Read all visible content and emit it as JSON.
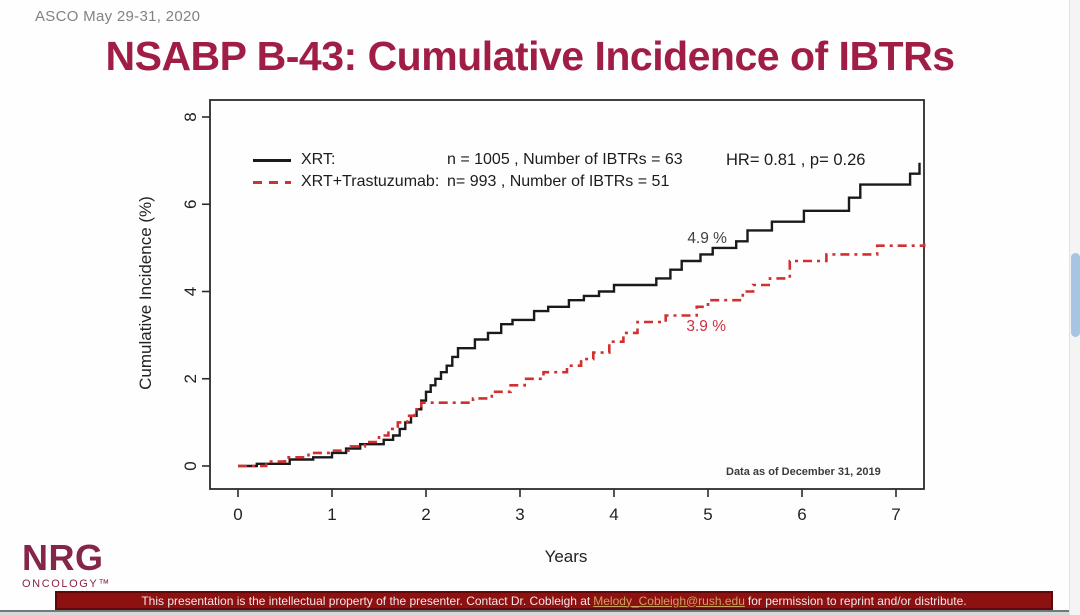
{
  "header": {
    "conference": "ASCO May 29-31, 2020",
    "title": "NSABP B-43: Cumulative Incidence of IBTRs"
  },
  "colors": {
    "title": "#a01d45",
    "xrt_line": "#1a1a1a",
    "trastuzumab_line": "#d13030",
    "banner_background": "#8e1111",
    "banner_link": "#c9a35e",
    "nrg_logo": "#84254a",
    "scrollbar_thumb": "#a8c4e4"
  },
  "legend": {
    "rows": [
      {
        "label": "XRT:",
        "stats": "n = 1005 , Number of IBTRs = 63",
        "color": "#1a1a1a",
        "style": "solid"
      },
      {
        "label": "XRT+Trastuzumab:",
        "stats": "n= 993 , Number of IBTRs = 51",
        "color": "#d13030",
        "style": "dash-dot"
      }
    ],
    "stats_text": "HR= 0.81 ,  p= 0.26"
  },
  "chart_data": {
    "type": "line",
    "subtype": "step-cumulative-incidence",
    "title": "",
    "xlabel": "Years",
    "ylabel": "Cumulative Incidence (%)",
    "xlim": [
      0,
      7.35
    ],
    "ylim": [
      0,
      8
    ],
    "xticks": [
      0,
      1,
      2,
      3,
      4,
      5,
      6,
      7
    ],
    "yticks": [
      0,
      2,
      4,
      6,
      8
    ],
    "grid": false,
    "legend_position": "top-left-inside",
    "stats": {
      "hr": 0.81,
      "p": 0.26
    },
    "series": [
      {
        "name": "XRT",
        "n": 1005,
        "events": 63,
        "color": "#1a1a1a",
        "style": "solid",
        "final_label": "4.9 %",
        "points": [
          [
            0,
            0
          ],
          [
            0.2,
            0.05
          ],
          [
            0.55,
            0.15
          ],
          [
            0.8,
            0.2
          ],
          [
            1.0,
            0.3
          ],
          [
            1.15,
            0.4
          ],
          [
            1.3,
            0.5
          ],
          [
            1.55,
            0.6
          ],
          [
            1.65,
            0.7
          ],
          [
            1.72,
            0.85
          ],
          [
            1.78,
            1.0
          ],
          [
            1.84,
            1.15
          ],
          [
            1.9,
            1.3
          ],
          [
            1.95,
            1.5
          ],
          [
            2.0,
            1.7
          ],
          [
            2.05,
            1.85
          ],
          [
            2.1,
            2.0
          ],
          [
            2.16,
            2.15
          ],
          [
            2.22,
            2.3
          ],
          [
            2.28,
            2.5
          ],
          [
            2.34,
            2.7
          ],
          [
            2.52,
            2.9
          ],
          [
            2.66,
            3.05
          ],
          [
            2.8,
            3.25
          ],
          [
            2.92,
            3.35
          ],
          [
            3.15,
            3.55
          ],
          [
            3.3,
            3.65
          ],
          [
            3.52,
            3.8
          ],
          [
            3.68,
            3.9
          ],
          [
            3.84,
            4.0
          ],
          [
            4.0,
            4.15
          ],
          [
            4.45,
            4.3
          ],
          [
            4.6,
            4.5
          ],
          [
            4.72,
            4.7
          ],
          [
            4.92,
            4.85
          ],
          [
            5.05,
            5.0
          ],
          [
            5.3,
            5.15
          ],
          [
            5.42,
            5.4
          ],
          [
            5.68,
            5.6
          ],
          [
            6.02,
            5.85
          ],
          [
            6.5,
            6.15
          ],
          [
            6.62,
            6.45
          ],
          [
            7.15,
            6.7
          ],
          [
            7.25,
            6.95
          ]
        ]
      },
      {
        "name": "XRT+Trastuzumab",
        "n": 993,
        "events": 51,
        "color": "#d13030",
        "style": "dash-dot",
        "final_label": "3.9 %",
        "points": [
          [
            0,
            0
          ],
          [
            0.3,
            0.1
          ],
          [
            0.5,
            0.2
          ],
          [
            0.75,
            0.3
          ],
          [
            1.0,
            0.35
          ],
          [
            1.2,
            0.45
          ],
          [
            1.35,
            0.55
          ],
          [
            1.5,
            0.7
          ],
          [
            1.6,
            0.85
          ],
          [
            1.7,
            1.0
          ],
          [
            1.8,
            1.15
          ],
          [
            1.88,
            1.3
          ],
          [
            1.95,
            1.45
          ],
          [
            2.5,
            1.55
          ],
          [
            2.7,
            1.7
          ],
          [
            2.9,
            1.85
          ],
          [
            3.05,
            2.0
          ],
          [
            3.25,
            2.15
          ],
          [
            3.5,
            2.3
          ],
          [
            3.65,
            2.45
          ],
          [
            3.78,
            2.6
          ],
          [
            3.95,
            2.85
          ],
          [
            4.1,
            3.05
          ],
          [
            4.25,
            3.3
          ],
          [
            4.55,
            3.45
          ],
          [
            4.88,
            3.65
          ],
          [
            5.0,
            3.8
          ],
          [
            5.37,
            4.0
          ],
          [
            5.48,
            4.15
          ],
          [
            5.66,
            4.3
          ],
          [
            5.87,
            4.7
          ],
          [
            6.26,
            4.85
          ],
          [
            6.8,
            5.05
          ],
          [
            7.3,
            5.1
          ]
        ]
      }
    ],
    "annotations": [
      {
        "text": "4.9 %",
        "x": 4.78,
        "y": 5.11,
        "color": "#3f3f3f"
      },
      {
        "text": "3.9 %",
        "x": 4.77,
        "y": 3.09,
        "color": "#cc3040"
      }
    ],
    "data_note": "Data as of December 31, 2019"
  },
  "footer": {
    "logo_main": "NRG",
    "logo_sub": "ONCOLOGY™",
    "banner_pre": "This presentation is the intellectual property of the presenter. Contact Dr. Cobleigh at",
    "banner_link": "Melody_Cobleigh@rush.edu",
    "banner_post": "for permission to reprint and/or distribute."
  }
}
